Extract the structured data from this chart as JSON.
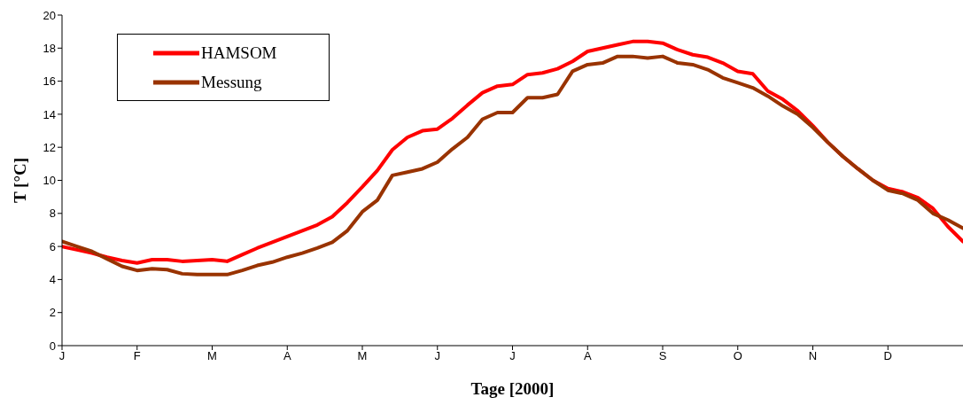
{
  "chart_data": {
    "type": "line",
    "xlabel": "Tage [2000]",
    "ylabel": "T [°C]",
    "categories": [
      "J",
      null,
      null,
      null,
      null,
      "F",
      null,
      null,
      null,
      null,
      "M",
      null,
      null,
      null,
      null,
      "A",
      null,
      null,
      null,
      null,
      "M",
      null,
      null,
      null,
      null,
      "J",
      null,
      null,
      null,
      null,
      "J",
      null,
      null,
      null,
      null,
      "A",
      null,
      null,
      null,
      null,
      "S",
      null,
      null,
      null,
      null,
      "O",
      null,
      null,
      null,
      null,
      "N",
      null,
      null,
      null,
      null,
      "D",
      null,
      null,
      null,
      null,
      null
    ],
    "ylim": [
      0,
      20
    ],
    "yticks": [
      0,
      2,
      4,
      6,
      8,
      10,
      12,
      14,
      16,
      18,
      20
    ],
    "grid": false,
    "legend": "top left",
    "marker": "none",
    "line_style": "solid",
    "series": [
      {
        "name": "HAMSOM",
        "color": "#ff0000",
        "values": [
          6.0,
          5.8,
          5.6,
          5.35,
          5.15,
          5.0,
          5.2,
          5.2,
          5.1,
          5.15,
          5.2,
          5.1,
          5.5,
          5.9,
          6.25,
          6.6,
          6.95,
          7.3,
          7.8,
          8.65,
          9.6,
          10.6,
          11.85,
          12.6,
          13.0,
          13.1,
          13.75,
          14.55,
          15.3,
          15.7,
          15.8,
          16.4,
          16.5,
          16.75,
          17.2,
          17.8,
          18.0,
          18.2,
          18.4,
          18.4,
          18.3,
          17.9,
          17.6,
          17.45,
          17.1,
          16.6,
          16.45,
          15.4,
          14.9,
          14.2,
          13.3,
          12.3,
          11.45,
          10.7,
          10.0,
          9.5,
          9.3,
          8.95,
          8.3,
          7.2,
          6.3
        ]
      },
      {
        "name": "Messung",
        "color": "#993300",
        "values": [
          6.3,
          6.0,
          5.7,
          5.25,
          4.8,
          4.55,
          4.65,
          4.6,
          4.35,
          4.3,
          4.3,
          4.3,
          4.55,
          4.85,
          5.05,
          5.35,
          5.6,
          5.9,
          6.25,
          6.95,
          8.1,
          8.8,
          10.3,
          10.5,
          10.7,
          11.1,
          11.9,
          12.6,
          13.7,
          14.1,
          14.1,
          15.0,
          15.0,
          15.2,
          16.6,
          17.0,
          17.1,
          17.5,
          17.5,
          17.4,
          17.5,
          17.1,
          17.0,
          16.7,
          16.2,
          15.9,
          15.6,
          15.1,
          14.5,
          14.0,
          13.2,
          12.3,
          11.45,
          10.7,
          10.0,
          9.4,
          9.2,
          8.8,
          8.0,
          7.6,
          7.1
        ]
      }
    ]
  }
}
